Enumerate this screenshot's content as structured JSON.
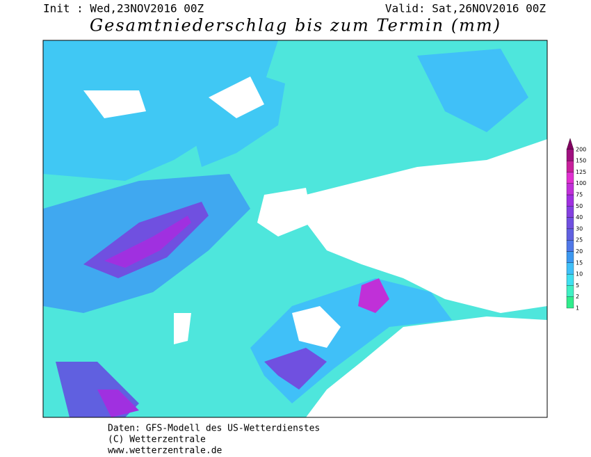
{
  "header": {
    "init": "Init : Wed,23NOV2016 00Z",
    "valid": "Valid: Sat,26NOV2016 00Z",
    "title": "Gesamtniederschlag bis zum Termin (mm)"
  },
  "legend": {
    "levels": [
      1,
      2,
      5,
      10,
      15,
      20,
      25,
      30,
      40,
      50,
      75,
      100,
      125,
      150,
      200
    ],
    "colors": [
      "#30ec8c",
      "#40f0c4",
      "#40e0f0",
      "#40c0f8",
      "#3c98f0",
      "#5078e8",
      "#6060e0",
      "#7050e0",
      "#8440e0",
      "#a030e0",
      "#c030d8",
      "#e030d0",
      "#c8209c",
      "#a01080",
      "#800060"
    ]
  },
  "footer": {
    "lines": [
      "Daten: GFS-Modell des US-Wetterdienstes",
      "(C) Wetterzentrale",
      "www.wetterzentrale.de"
    ]
  }
}
